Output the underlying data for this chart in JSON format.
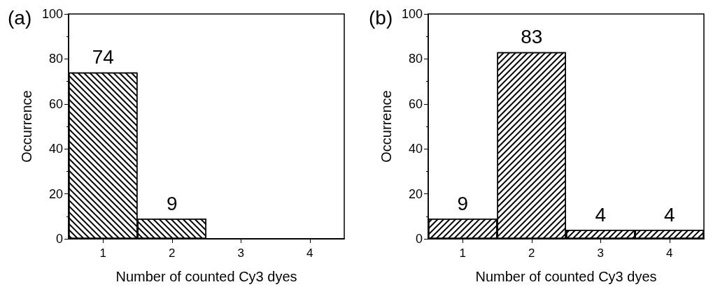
{
  "chart_data": [
    {
      "type": "bar",
      "title": "(a)",
      "xlabel": "Number of counted Cy3 dyes",
      "ylabel": "Occurrence",
      "categories": [
        "1",
        "2",
        "3",
        "4"
      ],
      "values": [
        74,
        9,
        0,
        0
      ],
      "color": "#000000",
      "ylim": [
        0,
        100
      ],
      "yticks": [
        0,
        20,
        40,
        60,
        80,
        100
      ],
      "grid": false,
      "data_labels": true,
      "value_labels": [
        "74",
        "9",
        null,
        null
      ]
    },
    {
      "type": "bar",
      "title": "(b)",
      "xlabel": "Number of counted Cy3 dyes",
      "ylabel": "Occurrence",
      "categories": [
        "1",
        "2",
        "3",
        "4"
      ],
      "values": [
        9,
        83,
        4,
        4
      ],
      "color": "#000000",
      "ylim": [
        0,
        100
      ],
      "yticks": [
        0,
        20,
        40,
        60,
        80,
        100
      ],
      "grid": false,
      "data_labels": true
    }
  ]
}
